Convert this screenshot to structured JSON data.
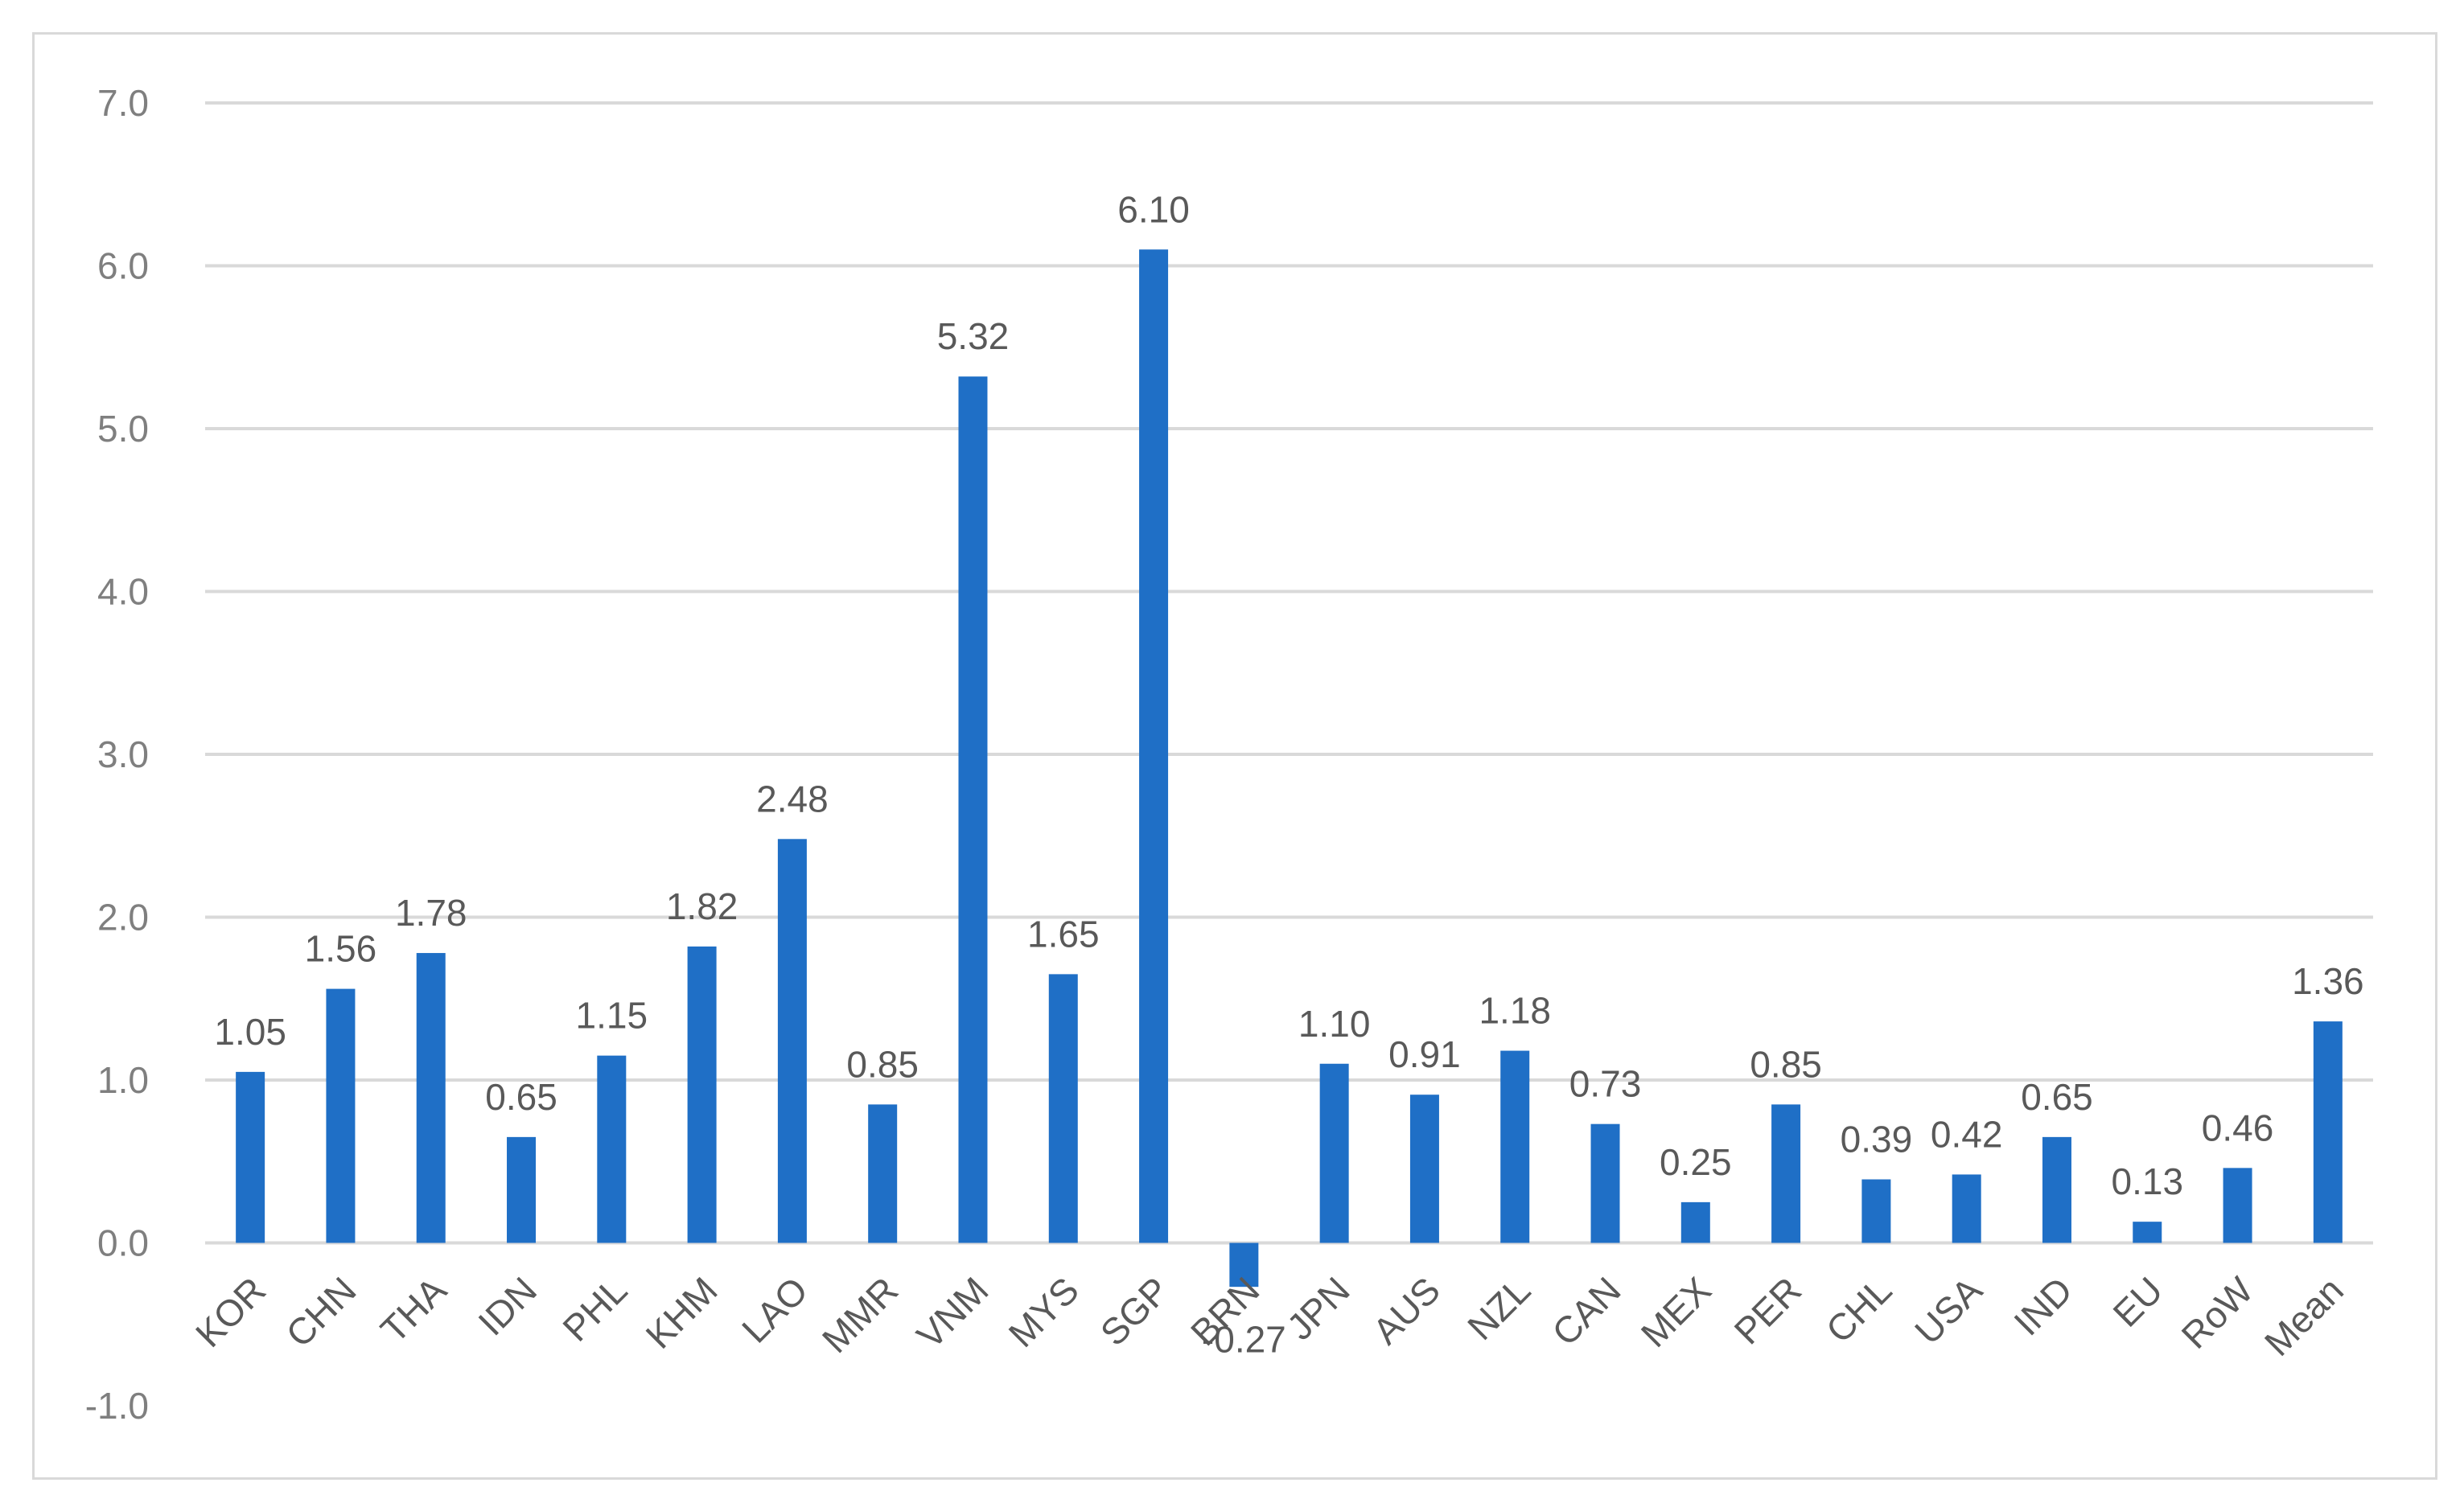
{
  "chart_data": {
    "type": "bar",
    "categories": [
      "KOR",
      "CHN",
      "THA",
      "IDN",
      "PHL",
      "KHM",
      "LAO",
      "MMR",
      "VNM",
      "MYS",
      "SGP",
      "BRN",
      "JPN",
      "AUS",
      "NZL",
      "CAN",
      "MEX",
      "PER",
      "CHL",
      "USA",
      "IND",
      "EU",
      "RoW",
      "Mean"
    ],
    "values": [
      1.05,
      1.56,
      1.78,
      0.65,
      1.15,
      1.82,
      2.48,
      0.85,
      5.32,
      1.65,
      6.1,
      -0.27,
      1.1,
      0.91,
      1.18,
      0.73,
      0.25,
      0.85,
      0.39,
      0.42,
      0.65,
      0.13,
      0.46,
      1.36
    ],
    "value_labels": [
      "1.05",
      "1.56",
      "1.78",
      "0.65",
      "1.15",
      "1.82",
      "2.48",
      "0.85",
      "5.32",
      "1.65",
      "6.10",
      "-0.27",
      "1.10",
      "0.91",
      "1.18",
      "0.73",
      "0.25",
      "0.85",
      "0.39",
      "0.42",
      "0.65",
      "0.13",
      "0.46",
      "1.36"
    ],
    "y_ticks": [
      "7.0",
      "6.0",
      "5.0",
      "4.0",
      "3.0",
      "2.0",
      "1.0",
      "0.0",
      "-1.0"
    ],
    "y_tick_values": [
      7,
      6,
      5,
      4,
      3,
      2,
      1,
      0,
      -1
    ],
    "ylim": [
      -1,
      7
    ],
    "title": "",
    "xlabel": "",
    "ylabel": "",
    "grid": true,
    "legend": "none",
    "colors": {
      "bar": "#1f6fc6",
      "gridline": "#d9d9d9",
      "negative_text": "#ff0000",
      "tick_text": "#7f7f7f",
      "label_text": "#595959"
    }
  }
}
